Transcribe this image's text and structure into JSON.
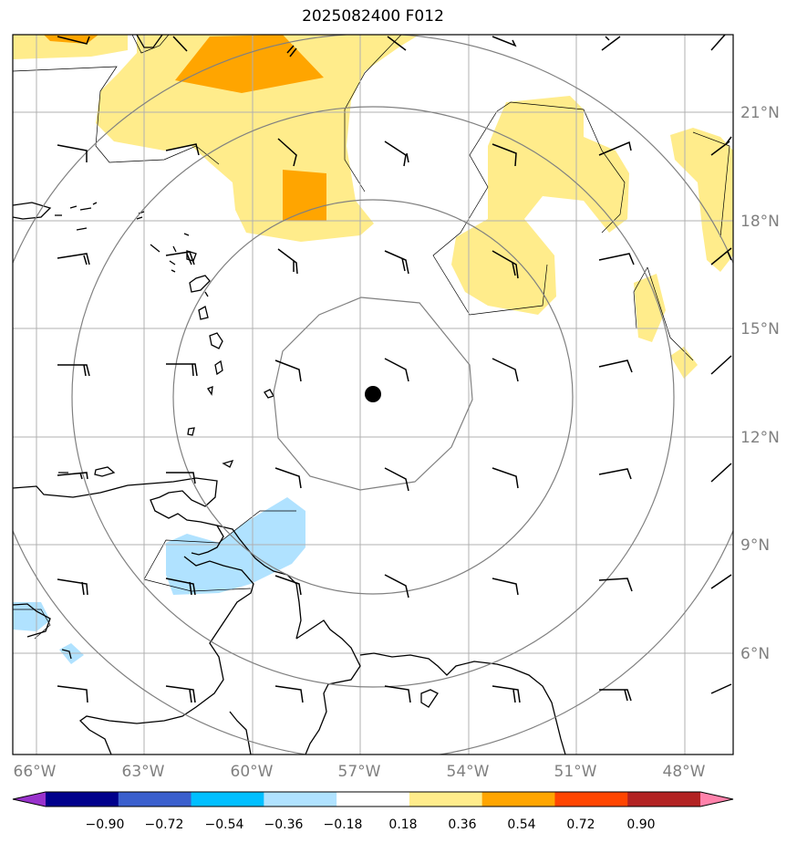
{
  "title": "2025082400 F012",
  "lon_labels": [
    "66°W",
    "63°W",
    "60°W",
    "57°W",
    "54°W",
    "51°W",
    "48°W"
  ],
  "lat_labels": [
    "21°N",
    "18°N",
    "15°N",
    "12°N",
    "9°N",
    "6°N"
  ],
  "colorbar": {
    "ticks": [
      "−0.90",
      "−0.72",
      "−0.54",
      "−0.36",
      "−0.18",
      "0.18",
      "0.36",
      "0.54",
      "0.72",
      "0.90"
    ],
    "colors": [
      "#9932cc",
      "#00008b",
      "#3a5fcd",
      "#00bfff",
      "#b0e2ff",
      "#ffffff",
      "#ffec8b",
      "#ffa500",
      "#ff4500",
      "#b22222",
      "#ff82ab"
    ]
  },
  "center_marker": "storm-center-dot",
  "overlays": [
    "range-rings",
    "wind-barbs",
    "coastlines",
    "shaded-anomaly-field"
  ]
}
